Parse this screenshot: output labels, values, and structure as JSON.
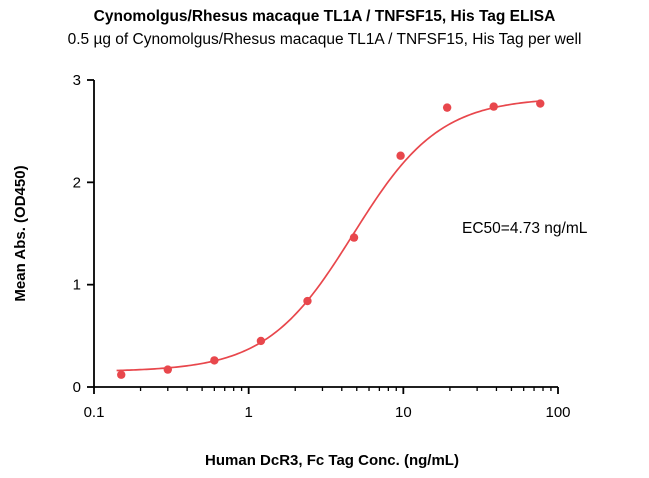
{
  "chart_data": {
    "type": "scatter",
    "title": "Cynomolgus/Rhesus macaque TL1A / TNFSF15, His Tag  ELISA",
    "subtitle": "0.5 µg of Cynomolgus/Rhesus macaque TL1A / TNFSF15, His Tag  per well",
    "xlabel": "Human DcR3, Fc Tag Conc. (ng/mL)",
    "ylabel": "Mean Abs. (OD450)",
    "x_scale": "log",
    "xlim": [
      0.1,
      100
    ],
    "ylim": [
      0,
      3
    ],
    "x_ticks": [
      0.1,
      1,
      10,
      100
    ],
    "x_tick_labels": [
      "0.1",
      "1",
      "10",
      "100"
    ],
    "y_ticks": [
      0,
      1,
      2,
      3
    ],
    "y_tick_labels": [
      "0",
      "1",
      "2",
      "3"
    ],
    "grid": false,
    "series": [
      {
        "color": "#e8474c",
        "x": [
          0.15,
          0.3,
          0.6,
          1.2,
          2.4,
          4.8,
          9.6,
          19.2,
          38.4,
          76.8
        ],
        "y": [
          0.12,
          0.17,
          0.26,
          0.45,
          0.84,
          1.46,
          2.26,
          2.73,
          2.74,
          2.77
        ],
        "fit": {
          "model": "4PL",
          "bottom": 0.15,
          "top": 2.83,
          "ec50": 4.73,
          "hill": 1.55,
          "color": "#e8474c"
        }
      }
    ],
    "annotations": [
      {
        "text": "EC50=4.73 ng/mL"
      }
    ]
  }
}
